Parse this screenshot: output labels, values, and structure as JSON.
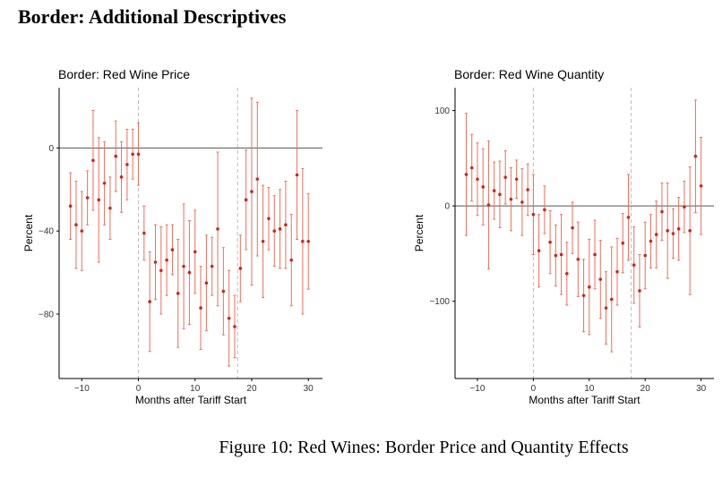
{
  "page_title": "Border: Additional Descriptives",
  "caption": "Figure 10: Red Wines: Border Price and Quantity Effects",
  "chart_data": [
    {
      "type": "errorbar",
      "title": "Border: Red Wine Price",
      "x_label": "Months after Tariff Start",
      "y_label": "Percent",
      "x": [
        -12,
        -11,
        -10,
        -9,
        -8,
        -7,
        -6,
        -5,
        -4,
        -3,
        -2,
        -1,
        0,
        1,
        2,
        3,
        4,
        5,
        6,
        7,
        8,
        9,
        10,
        11,
        12,
        13,
        14,
        15,
        16,
        17,
        18,
        19,
        20,
        21,
        22,
        23,
        24,
        25,
        26,
        27,
        28,
        29,
        30
      ],
      "values": [
        -28,
        -37,
        -40,
        -24,
        -6,
        -25,
        -17,
        -29,
        -4,
        -14,
        -8,
        -3,
        -3,
        -41,
        -74,
        -55,
        -59,
        -54,
        -49,
        -70,
        -57,
        -60,
        -50,
        -77,
        -65,
        -57,
        -39,
        -69,
        -82,
        -86,
        -58,
        -25,
        -21,
        -15,
        -45,
        -34,
        -40,
        -39,
        -37,
        -54,
        -13,
        -45,
        -45
      ],
      "errors": [
        16,
        21,
        19,
        13,
        24,
        30,
        20,
        15,
        17,
        17,
        17,
        12,
        15,
        13,
        24,
        18,
        21,
        17,
        12,
        26,
        30,
        25,
        20,
        20,
        23,
        14,
        37,
        21,
        23,
        15,
        16,
        24,
        45,
        37,
        27,
        15,
        17,
        19,
        21,
        22,
        31,
        35,
        23
      ],
      "color": "#c8281c",
      "errorbar_color": "#e8705e",
      "xlim": [
        -14,
        32.5
      ],
      "ylim": [
        -111,
        29
      ],
      "xticks": [
        {
          "value": -10,
          "label": "−10"
        },
        0,
        10,
        20,
        30
      ],
      "yticks": [
        {
          "value": -80,
          "label": "−80"
        },
        {
          "value": -40,
          "label": "−40"
        },
        0
      ],
      "hline": 0,
      "vlines": [
        0,
        17.5
      ]
    },
    {
      "type": "errorbar",
      "title": "Border: Red Wine Quantity",
      "x_label": "Months after Tariff Start",
      "y_label": "Percent",
      "x": [
        -12,
        -11,
        -10,
        -9,
        -8,
        -7,
        -6,
        -5,
        -4,
        -3,
        -2,
        -1,
        0,
        1,
        2,
        3,
        4,
        5,
        6,
        7,
        8,
        9,
        10,
        11,
        12,
        13,
        14,
        15,
        16,
        17,
        18,
        19,
        20,
        21,
        22,
        23,
        24,
        25,
        26,
        27,
        28,
        29,
        30
      ],
      "values": [
        33,
        40,
        28,
        20,
        1,
        16,
        12,
        30,
        7,
        28,
        4,
        17,
        -9,
        -47,
        -4,
        -38,
        -52,
        -51,
        -71,
        -23,
        -56,
        -94,
        -85,
        -51,
        -77,
        -107,
        -98,
        -69,
        -39,
        -12,
        -62,
        -89,
        -52,
        -37,
        -30,
        -6,
        -26,
        -29,
        -24,
        -1,
        -26,
        52,
        21
      ],
      "errors": [
        64,
        35,
        38,
        40,
        67,
        30,
        35,
        28,
        33,
        20,
        35,
        27,
        42,
        38,
        25,
        33,
        32,
        42,
        33,
        27,
        39,
        38,
        50,
        36,
        41,
        38,
        55,
        35,
        31,
        45,
        40,
        38,
        35,
        28,
        35,
        30,
        50,
        26,
        33,
        27,
        67,
        59,
        51
      ],
      "color": "#c8281c",
      "errorbar_color": "#e8705e",
      "xlim": [
        -14,
        32.3
      ],
      "ylim": [
        -181,
        124
      ],
      "xticks": [
        {
          "value": -10,
          "label": "−10"
        },
        0,
        10,
        20,
        30
      ],
      "yticks": [
        {
          "value": -100,
          "label": "−100"
        },
        0,
        100
      ],
      "hline": 0,
      "vlines": [
        0,
        17.5
      ]
    }
  ]
}
